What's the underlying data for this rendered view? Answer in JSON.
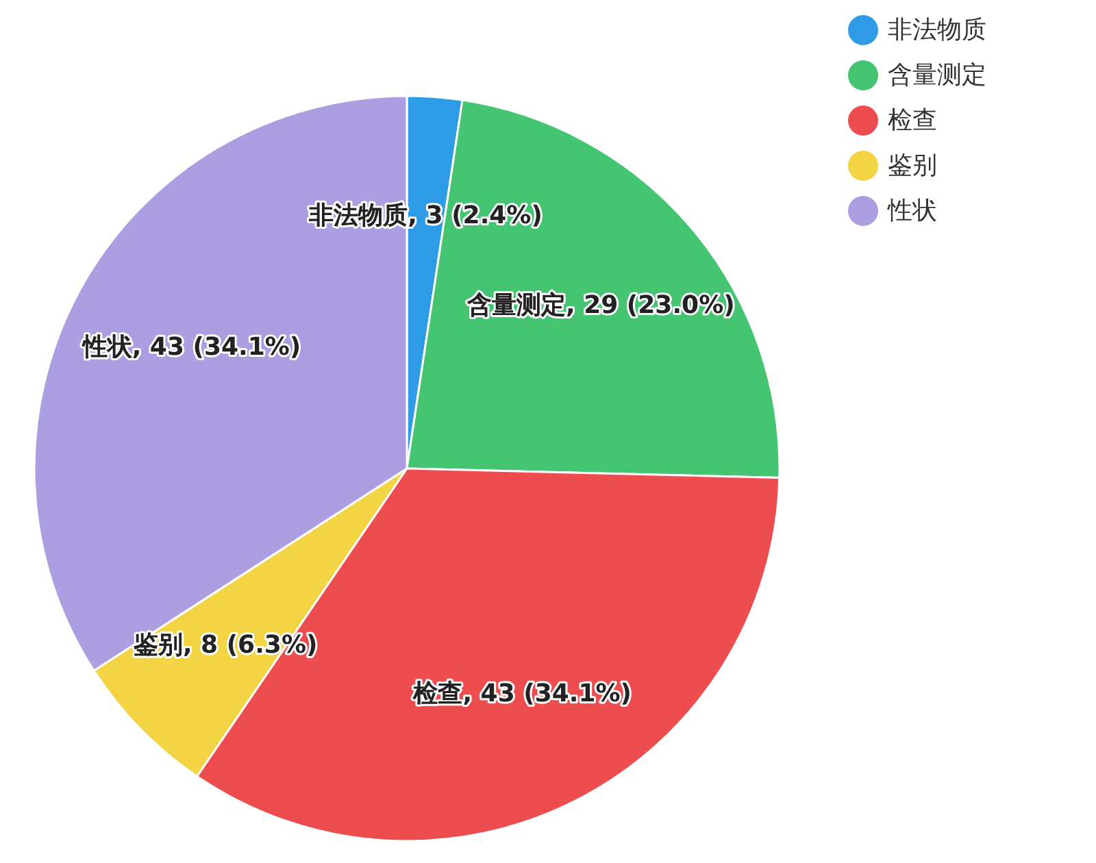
{
  "chart_data": {
    "type": "pie",
    "categories": [
      "非法物质",
      "含量测定",
      "检查",
      "鉴别",
      "性状"
    ],
    "values": [
      3,
      29,
      43,
      8,
      43
    ],
    "colors": [
      "#2e9be6",
      "#45c472",
      "#ee4d4f",
      "#f3d444",
      "#ad9ee2"
    ],
    "value_labels": [
      "非法物质, 3 (2.4%)",
      "含量测定, 29 (23.0%)",
      "检查, 43 (34.1%)",
      "鉴别, 8 (6.3%)",
      "性状, 43 (34.1%)"
    ],
    "legend": "top right"
  }
}
